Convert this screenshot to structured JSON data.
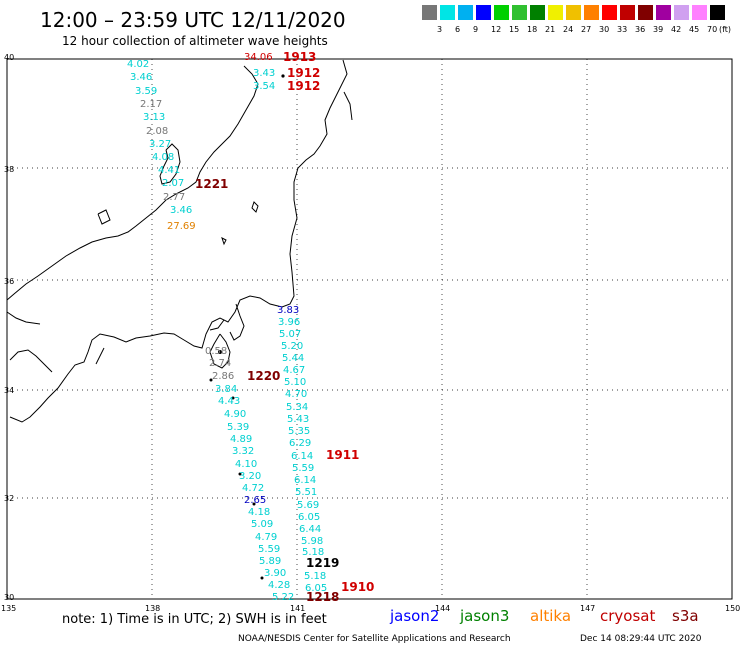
{
  "title": "12:00 – 23:59 UTC 12/11/2020",
  "subtitle": "12 hour collection of altimeter wave heights",
  "scale": {
    "unit": "(ft)",
    "colors": [
      "#777777",
      "#00e5e5",
      "#00b0f0",
      "#0000ff",
      "#00d000",
      "#30c030",
      "#008000",
      "#f0f000",
      "#f0c000",
      "#ff8000",
      "#ff0000",
      "#c00000",
      "#800000",
      "#a000a0",
      "#d0a0f0",
      "#ff80ff",
      "#000000"
    ],
    "labels": [
      "3",
      "6",
      "9",
      "12",
      "15",
      "18",
      "21",
      "24",
      "27",
      "30",
      "33",
      "36",
      "39",
      "42",
      "45",
      "70"
    ]
  },
  "axes": {
    "lat_labels": [
      "40",
      "38",
      "36",
      "34",
      "32",
      "30"
    ],
    "lon_labels": [
      "135",
      "138",
      "141",
      "144",
      "147",
      "150"
    ]
  },
  "map_points": {
    "cyan_west": [
      "4.02",
      "3.46",
      "3.59",
      "3.13",
      "3.27",
      "4.08",
      "4.41",
      "2.07",
      "3.46"
    ],
    "gray_west": [
      "2.17",
      "2.08",
      "2.77"
    ],
    "orange_west": [
      "27.69"
    ],
    "top_red": "34.06",
    "top_cyan": [
      "3.43",
      "3.54"
    ],
    "coast_gray": [
      "0.58",
      "2.74",
      "2.86"
    ],
    "track_mid": [
      "3.84",
      "4.43",
      "4.90",
      "5.39",
      "4.89",
      "3.32",
      "4.10",
      "3.20",
      "4.72"
    ],
    "blue_mid": "2.65",
    "track_low": [
      "4.18",
      "5.09",
      "4.79",
      "5.59",
      "5.89",
      "3.90",
      "4.28",
      "5.22"
    ],
    "blue_east": "3.83",
    "track_east": [
      "3.96",
      "5.07",
      "5.20",
      "5.44",
      "4.67",
      "5.10",
      "4.70",
      "5.34",
      "5.43",
      "5.35",
      "6.29",
      "6.14",
      "5.59",
      "6.14",
      "5.51",
      "5.69",
      "6.05",
      "6.44",
      "5.98",
      "5.18",
      "5.18",
      "6.05"
    ]
  },
  "time_labels": {
    "t1913": "1913",
    "t1912a": "1912",
    "t1912b": "1912",
    "t1221": "1221",
    "t1220": "1220",
    "t1911": "1911",
    "t1219": "1219",
    "t1910": "1910",
    "t1218": "1218"
  },
  "note": "note: 1) Time is in UTC; 2) SWH is in feet",
  "legend": [
    {
      "label": "jason2",
      "color": "#0000ff"
    },
    {
      "label": "jason3",
      "color": "#008000"
    },
    {
      "label": "altika",
      "color": "#ff8000"
    },
    {
      "label": "cryosat",
      "color": "#c00000"
    },
    {
      "label": "s3a",
      "color": "#800000"
    }
  ],
  "footer": "NOAA/NESDIS Center for Satellite Applications and Research",
  "timestamp": "Dec 14 08:29:44 UTC 2020"
}
